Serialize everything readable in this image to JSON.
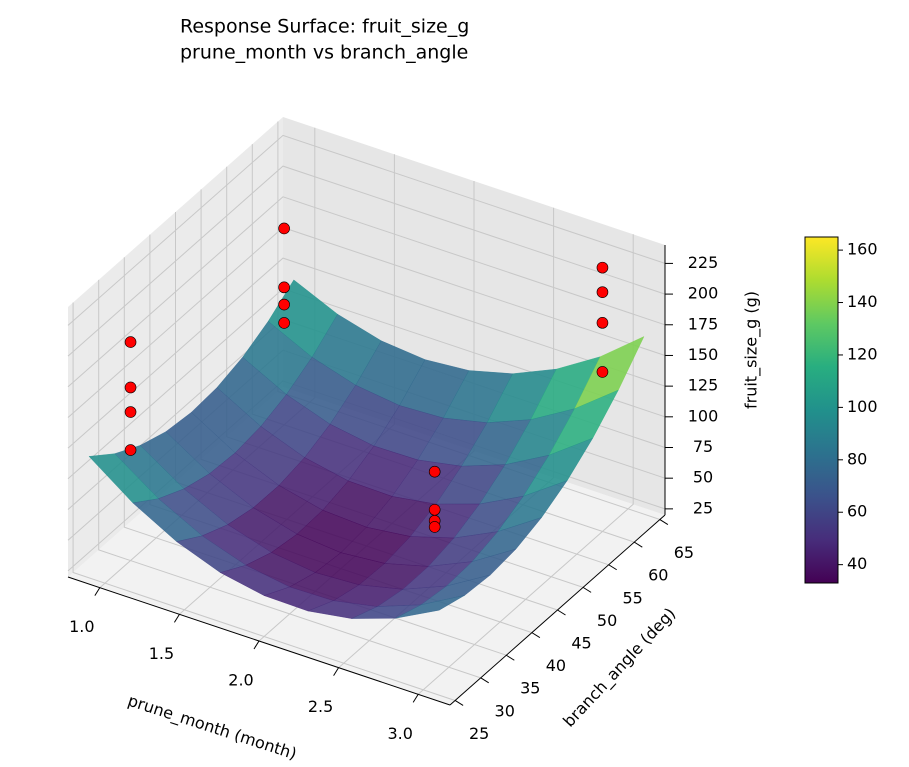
{
  "chart_data": {
    "type": "surface3d",
    "title": "Response Surface: fruit_size_g",
    "subtitle": "prune_month vs branch_angle",
    "x_label": "prune_month (month)",
    "y_label": "branch_angle (deg)",
    "z_label": "fruit_size_g (g)",
    "colormap": "viridis",
    "xlim": [
      0.8,
      3.2
    ],
    "ylim": [
      24,
      66
    ],
    "zlim": [
      20,
      240
    ],
    "clim": [
      33,
      165
    ],
    "xticks": [
      {
        "value": 1,
        "label": "1.0"
      },
      {
        "value": 1.5,
        "label": "1.5"
      },
      {
        "value": 2,
        "label": "2.0"
      },
      {
        "value": 2.5,
        "label": "2.5"
      },
      {
        "value": 3,
        "label": "3.0"
      }
    ],
    "yticks": [
      25,
      30,
      35,
      40,
      45,
      50,
      55,
      60,
      65
    ],
    "zticks": [
      25,
      50,
      75,
      100,
      125,
      150,
      175,
      200,
      225
    ],
    "cticks": [
      40,
      60,
      80,
      100,
      120,
      140,
      160
    ],
    "grid": true,
    "surface": {
      "x": [
        0.9,
        1.175,
        1.45,
        1.725,
        2.0,
        2.275,
        2.55,
        2.825,
        3.1
      ],
      "y": [
        25,
        30,
        35,
        40,
        45,
        50,
        55,
        60,
        65
      ],
      "z": [
        [
          118.9,
          102.7,
          91.0,
          83.8,
          81.1,
          82.9,
          89.2,
          100.0,
          115.3
        ],
        [
          93.0,
          78.0,
          67.6,
          61.6,
          60.1,
          63.2,
          70.7,
          82.7,
          99.3
        ],
        [
          73.4,
          59.7,
          50.4,
          45.7,
          45.5,
          49.8,
          58.5,
          71.8,
          89.6
        ],
        [
          60.1,
          47.7,
          39.7,
          36.2,
          37.2,
          42.7,
          52.7,
          67.2,
          86.2
        ],
        [
          53.3,
          42.0,
          35.3,
          33.0,
          35.3,
          42.0,
          53.3,
          69.0,
          89.3
        ],
        [
          52.7,
          42.7,
          37.2,
          36.2,
          39.7,
          47.7,
          60.1,
          77.1,
          98.6
        ],
        [
          58.5,
          49.8,
          45.5,
          45.7,
          50.4,
          59.7,
          73.4,
          91.6,
          114.3
        ],
        [
          70.7,
          63.2,
          60.1,
          61.6,
          67.6,
          78.0,
          93.0,
          112.4,
          136.4
        ],
        [
          89.2,
          82.9,
          81.1,
          83.8,
          91.0,
          102.7,
          118.9,
          139.6,
          164.8
        ]
      ]
    },
    "points": {
      "color": "#ff0000",
      "x": [
        1,
        1,
        1,
        1,
        1,
        1,
        1,
        1,
        2.75,
        2.75,
        2.75,
        2.75,
        3,
        3,
        3,
        3
      ],
      "y": [
        30,
        30,
        30,
        30,
        60,
        60,
        60,
        60,
        35,
        35,
        35,
        35,
        60,
        60,
        60,
        60
      ],
      "z": [
        198,
        161,
        141,
        110,
        180,
        132,
        118,
        103,
        150,
        119,
        110,
        105,
        235,
        215,
        190,
        150
      ]
    }
  }
}
